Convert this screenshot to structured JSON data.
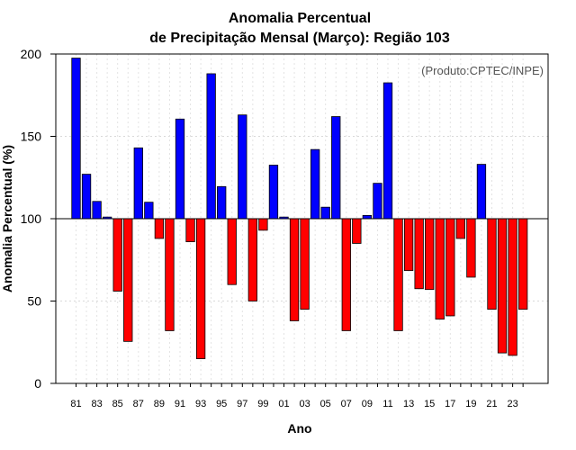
{
  "chart_data": {
    "type": "bar",
    "title": "Anomalia Percentual",
    "subtitle": "de Precipitação Mensal (Março): Região 103",
    "xlabel": "Ano",
    "ylabel": "Anomalia Percentual (%)",
    "credit": "(Produto:CPTEC/INPE)",
    "baseline": 100,
    "ylim": [
      0,
      200
    ],
    "yticks": [
      0,
      50,
      100,
      150,
      200
    ],
    "grid": true,
    "colors": {
      "above": "#0000ff",
      "below": "#ff0000"
    },
    "categories": [
      "81",
      "82",
      "83",
      "84",
      "85",
      "86",
      "87",
      "88",
      "89",
      "90",
      "91",
      "92",
      "93",
      "94",
      "95",
      "96",
      "97",
      "98",
      "99",
      "00",
      "01",
      "02",
      "03",
      "04",
      "05",
      "06",
      "07",
      "08",
      "09",
      "10",
      "11",
      "12",
      "13",
      "14",
      "15",
      "16",
      "17",
      "18",
      "19",
      "20",
      "21",
      "22",
      "23",
      "24"
    ],
    "tick_labels": [
      "81",
      "83",
      "85",
      "87",
      "89",
      "91",
      "93",
      "95",
      "97",
      "99",
      "01",
      "03",
      "05",
      "07",
      "09",
      "11",
      "13",
      "15",
      "17",
      "19",
      "21",
      "23"
    ],
    "values": [
      197.5,
      127,
      110.5,
      101,
      56,
      25.5,
      143,
      110,
      88,
      32,
      160.5,
      86,
      15,
      188,
      119.5,
      60,
      163,
      50,
      93,
      132.5,
      101,
      38,
      45,
      142,
      107,
      162,
      32,
      85,
      102,
      121.5,
      182.5,
      32,
      68.5,
      57.5,
      57,
      39,
      41,
      88,
      64.5,
      133,
      45,
      18.5,
      17,
      45
    ]
  }
}
